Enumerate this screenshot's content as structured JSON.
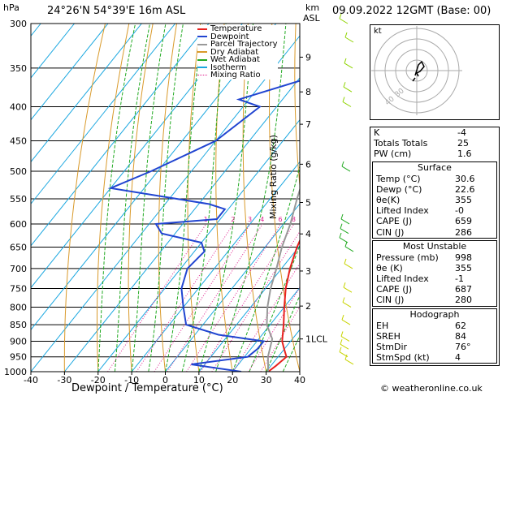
{
  "header": {
    "pressure_unit": "hPa",
    "location": "24°26'N  54°39'E  16m  ASL",
    "height_unit_km": "km",
    "height_unit_asl": "ASL",
    "datetime": "09.09.2022  12GMT  (Base: 00)"
  },
  "footer": {
    "credit": "© weatheronline.co.uk"
  },
  "legend": [
    {
      "label": "Temperature",
      "color": "#e8221f"
    },
    {
      "label": "Dewpoint",
      "color": "#2145d1"
    },
    {
      "label": "Parcel Trajectory",
      "color": "#999999"
    },
    {
      "label": "Dry Adiabat",
      "color": "#d99a2b"
    },
    {
      "label": "Wet Adiabat",
      "color": "#22aa22"
    },
    {
      "label": "Isotherm",
      "color": "#1aa7e0"
    },
    {
      "label": "Mixing Ratio",
      "color": "#e0208f"
    }
  ],
  "chart_data": {
    "type": "line",
    "title": "24°26'N  54°39'E  16m  ASL",
    "xlabel": "Dewpoint / Temperature (°C)",
    "ylabel": "hPa",
    "xlim": [
      -40,
      40
    ],
    "x_ticks": [
      "-40",
      "-30",
      "-20",
      "-10",
      "0",
      "10",
      "20",
      "30",
      "40"
    ],
    "pressure_levels": [
      "300",
      "350",
      "400",
      "450",
      "500",
      "550",
      "600",
      "650",
      "700",
      "750",
      "800",
      "850",
      "900",
      "950",
      "1000"
    ],
    "height_axis": {
      "label": "Mixing Ratio (g/kg)",
      "km_ticks": [
        {
          "label": "9",
          "p": 337
        },
        {
          "label": "8",
          "p": 380
        },
        {
          "label": "7",
          "p": 425
        },
        {
          "label": "6",
          "p": 488
        },
        {
          "label": "5",
          "p": 557
        },
        {
          "label": "4",
          "p": 621
        },
        {
          "label": "3",
          "p": 706
        },
        {
          "label": "2",
          "p": 797
        },
        {
          "label": "1LCL",
          "p": 893
        }
      ]
    },
    "mixing_ratio_labels": [
      "1",
      "2",
      "3",
      "4",
      "6",
      "8",
      "10",
      "15",
      "20",
      "25"
    ],
    "series": [
      {
        "name": "Temperature",
        "color": "#e8221f",
        "points": [
          [
            30.6,
            1000
          ],
          [
            31.5,
            980
          ],
          [
            32.5,
            950
          ],
          [
            30,
            925
          ],
          [
            27.5,
            900
          ],
          [
            24,
            850
          ],
          [
            20,
            800
          ],
          [
            16,
            750
          ],
          [
            12.5,
            700
          ],
          [
            9.5,
            650
          ],
          [
            7,
            600
          ],
          [
            3.5,
            550
          ],
          [
            -2,
            500
          ],
          [
            -7,
            450
          ],
          [
            -13,
            400
          ],
          [
            -18.5,
            360
          ],
          [
            -21,
            350
          ]
        ]
      },
      {
        "name": "Dewpoint",
        "color": "#2145d1",
        "points": [
          [
            22.6,
            1000
          ],
          [
            6,
            975
          ],
          [
            21,
            950
          ],
          [
            22,
            925
          ],
          [
            22,
            900
          ],
          [
            7,
            880
          ],
          [
            -5,
            850
          ],
          [
            -10,
            800
          ],
          [
            -15,
            750
          ],
          [
            -18,
            700
          ],
          [
            -17,
            660
          ],
          [
            -20,
            640
          ],
          [
            -34,
            620
          ],
          [
            -38,
            600
          ],
          [
            -21,
            590
          ],
          [
            -21,
            570
          ],
          [
            -27,
            560
          ],
          [
            -60,
            530
          ],
          [
            -52,
            500
          ],
          [
            -40,
            450
          ],
          [
            -35,
            400
          ],
          [
            -43,
            390
          ],
          [
            -20,
            350
          ],
          [
            -22,
            310
          ],
          [
            -27,
            300
          ]
        ]
      },
      {
        "name": "Parcel Trajectory",
        "color": "#999999",
        "points": [
          [
            30.6,
            1000
          ],
          [
            27,
            950
          ],
          [
            24,
            893
          ],
          [
            19,
            850
          ],
          [
            15,
            800
          ],
          [
            11.5,
            750
          ],
          [
            8.5,
            700
          ],
          [
            5,
            650
          ],
          [
            2,
            600
          ],
          [
            -2,
            550
          ],
          [
            -6,
            500
          ],
          [
            -11,
            450
          ],
          [
            -16,
            400
          ],
          [
            -22,
            350
          ],
          [
            -30,
            300
          ]
        ]
      }
    ]
  },
  "hodograph": {
    "unit_label": "kt",
    "ring_labels": [
      "40",
      "30"
    ]
  },
  "indices": {
    "k_label": "K",
    "k_value": "-4",
    "tt_label": "Totals Totals",
    "tt_value": "25",
    "pw_label": "PW (cm)",
    "pw_value": "1.6"
  },
  "surface": {
    "title": "Surface",
    "rows": [
      {
        "label": "Temp (°C)",
        "value": "30.6"
      },
      {
        "label": "Dewp (°C)",
        "value": "22.6"
      },
      {
        "label": "θe(K)",
        "value": "355"
      },
      {
        "label": "Lifted Index",
        "value": "-0"
      },
      {
        "label": "CAPE (J)",
        "value": "659"
      },
      {
        "label": "CIN (J)",
        "value": "286"
      }
    ]
  },
  "most_unstable": {
    "title": "Most Unstable",
    "rows": [
      {
        "label": "Pressure (mb)",
        "value": "998"
      },
      {
        "label": "θe (K)",
        "value": "355"
      },
      {
        "label": "Lifted Index",
        "value": "-1"
      },
      {
        "label": "CAPE (J)",
        "value": "687"
      },
      {
        "label": "CIN (J)",
        "value": "280"
      }
    ]
  },
  "hodograph_table": {
    "title": "Hodograph",
    "rows": [
      {
        "label": "EH",
        "value": "62"
      },
      {
        "label": "SREH",
        "value": "84"
      },
      {
        "label": "StmDir",
        "value": "76°"
      },
      {
        "label": "StmSpd (kt)",
        "value": "4"
      }
    ]
  }
}
